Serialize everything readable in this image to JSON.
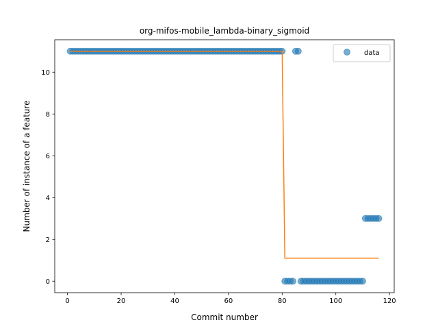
{
  "chart_data": {
    "type": "scatter",
    "title": "org-mifos-mobile_lambda-binary_sigmoid",
    "xlabel": "Commit number",
    "ylabel": "Number of instance of a feature",
    "xlim": [
      -4.75,
      121.75
    ],
    "ylim": [
      -0.55,
      11.55
    ],
    "x_ticks": [
      0,
      20,
      40,
      60,
      80,
      100,
      120
    ],
    "y_ticks": [
      0,
      2,
      4,
      6,
      8,
      10
    ],
    "grid": false,
    "legend_position": "top-right",
    "colors": {
      "data": "#1f77b4",
      "fit": "#ff7f0e"
    },
    "series": [
      {
        "name": "data",
        "type": "scatter",
        "points": [
          [
            1,
            11
          ],
          [
            2,
            11
          ],
          [
            3,
            11
          ],
          [
            4,
            11
          ],
          [
            5,
            11
          ],
          [
            6,
            11
          ],
          [
            7,
            11
          ],
          [
            8,
            11
          ],
          [
            9,
            11
          ],
          [
            10,
            11
          ],
          [
            11,
            11
          ],
          [
            12,
            11
          ],
          [
            13,
            11
          ],
          [
            14,
            11
          ],
          [
            15,
            11
          ],
          [
            16,
            11
          ],
          [
            17,
            11
          ],
          [
            18,
            11
          ],
          [
            19,
            11
          ],
          [
            20,
            11
          ],
          [
            21,
            11
          ],
          [
            22,
            11
          ],
          [
            23,
            11
          ],
          [
            24,
            11
          ],
          [
            25,
            11
          ],
          [
            26,
            11
          ],
          [
            27,
            11
          ],
          [
            28,
            11
          ],
          [
            29,
            11
          ],
          [
            30,
            11
          ],
          [
            31,
            11
          ],
          [
            32,
            11
          ],
          [
            33,
            11
          ],
          [
            34,
            11
          ],
          [
            35,
            11
          ],
          [
            36,
            11
          ],
          [
            37,
            11
          ],
          [
            38,
            11
          ],
          [
            39,
            11
          ],
          [
            40,
            11
          ],
          [
            41,
            11
          ],
          [
            42,
            11
          ],
          [
            43,
            11
          ],
          [
            44,
            11
          ],
          [
            45,
            11
          ],
          [
            46,
            11
          ],
          [
            47,
            11
          ],
          [
            48,
            11
          ],
          [
            49,
            11
          ],
          [
            50,
            11
          ],
          [
            51,
            11
          ],
          [
            52,
            11
          ],
          [
            53,
            11
          ],
          [
            54,
            11
          ],
          [
            55,
            11
          ],
          [
            56,
            11
          ],
          [
            57,
            11
          ],
          [
            58,
            11
          ],
          [
            59,
            11
          ],
          [
            60,
            11
          ],
          [
            61,
            11
          ],
          [
            62,
            11
          ],
          [
            63,
            11
          ],
          [
            64,
            11
          ],
          [
            65,
            11
          ],
          [
            66,
            11
          ],
          [
            67,
            11
          ],
          [
            68,
            11
          ],
          [
            69,
            11
          ],
          [
            70,
            11
          ],
          [
            71,
            11
          ],
          [
            72,
            11
          ],
          [
            73,
            11
          ],
          [
            74,
            11
          ],
          [
            75,
            11
          ],
          [
            76,
            11
          ],
          [
            77,
            11
          ],
          [
            78,
            11
          ],
          [
            79,
            11
          ],
          [
            80,
            11
          ],
          [
            81,
            0
          ],
          [
            82,
            0
          ],
          [
            83,
            0
          ],
          [
            84,
            0
          ],
          [
            85,
            11
          ],
          [
            86,
            11
          ],
          [
            87,
            0
          ],
          [
            88,
            0
          ],
          [
            89,
            0
          ],
          [
            90,
            0
          ],
          [
            91,
            0
          ],
          [
            92,
            0
          ],
          [
            93,
            0
          ],
          [
            94,
            0
          ],
          [
            95,
            0
          ],
          [
            96,
            0
          ],
          [
            97,
            0
          ],
          [
            98,
            0
          ],
          [
            99,
            0
          ],
          [
            100,
            0
          ],
          [
            101,
            0
          ],
          [
            102,
            0
          ],
          [
            103,
            0
          ],
          [
            104,
            0
          ],
          [
            105,
            0
          ],
          [
            106,
            0
          ],
          [
            107,
            0
          ],
          [
            108,
            0
          ],
          [
            109,
            0
          ],
          [
            110,
            0
          ],
          [
            111,
            3
          ],
          [
            112,
            3
          ],
          [
            113,
            3
          ],
          [
            114,
            3
          ],
          [
            115,
            3
          ],
          [
            116,
            3
          ]
        ]
      },
      {
        "type": "line",
        "points": [
          [
            1,
            11
          ],
          [
            80,
            11
          ],
          [
            81,
            1.1
          ],
          [
            116,
            1.1
          ]
        ]
      }
    ]
  }
}
